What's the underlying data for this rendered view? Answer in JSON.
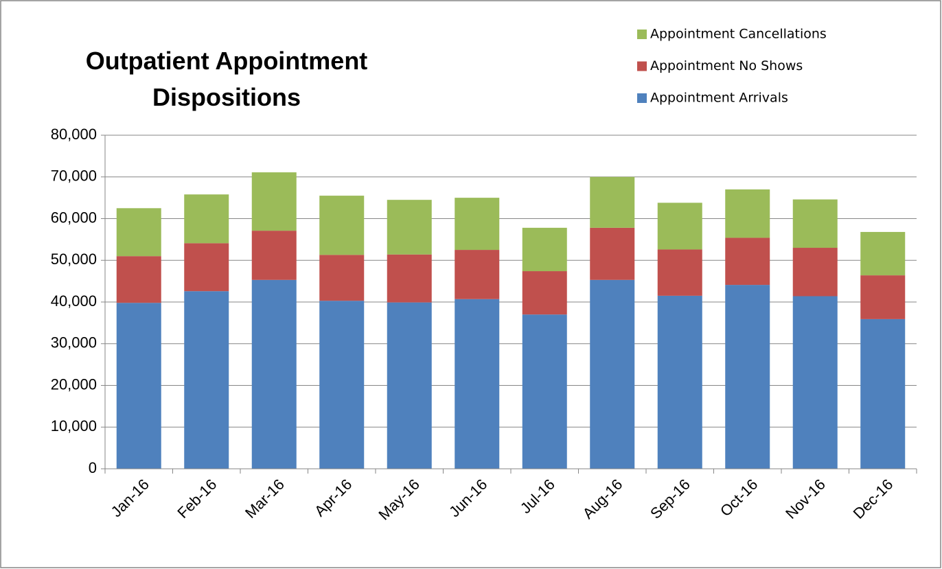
{
  "chart_data": {
    "type": "stacked_bar",
    "title": "Outpatient Appointment Dispositions",
    "categories": [
      "Jan-16",
      "Feb-16",
      "Mar-16",
      "Apr-16",
      "May-16",
      "Jun-16",
      "Jul-16",
      "Aug-16",
      "Sep-16",
      "Oct-16",
      "Nov-16",
      "Dec-16"
    ],
    "series": [
      {
        "name": "Appointment Arrivals",
        "color": "#4f81bd",
        "values": [
          39800,
          42600,
          45300,
          40300,
          39900,
          40700,
          37000,
          45300,
          41500,
          44100,
          41400,
          35900
        ]
      },
      {
        "name": "Appointment No Shows",
        "color": "#c0504d",
        "values": [
          11200,
          11500,
          11800,
          11000,
          11500,
          11800,
          10400,
          12500,
          11100,
          11300,
          11600,
          10500
        ]
      },
      {
        "name": "Appointment Cancellations",
        "color": "#9bbb59",
        "values": [
          11500,
          11700,
          14000,
          14200,
          13100,
          12500,
          10400,
          12200,
          11200,
          11600,
          11600,
          10400
        ]
      }
    ],
    "ylim": [
      0,
      80000
    ],
    "yticks": [
      0,
      {
        "value": 10000,
        "label": "10,000"
      },
      {
        "value": 20000,
        "label": "20,000"
      },
      {
        "value": 30000,
        "label": "30,000"
      },
      {
        "value": 40000,
        "label": "40,000"
      },
      {
        "value": 50000,
        "label": "50,000"
      },
      {
        "value": 60000,
        "label": "60,000"
      },
      {
        "value": 70000,
        "label": "70,000"
      },
      {
        "value": 80000,
        "label": "80,000"
      }
    ],
    "grid": true,
    "legend": "top-right"
  }
}
